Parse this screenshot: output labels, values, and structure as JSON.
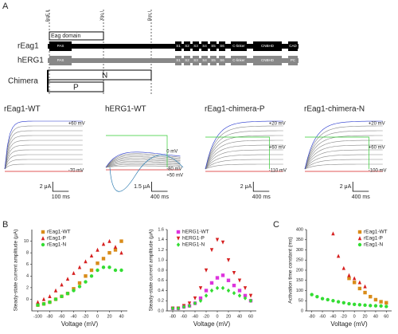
{
  "panel_a": {
    "letter": "A",
    "sites": [
      "BstE II",
      "Xho I",
      "Bmr I"
    ],
    "eag_domain": "Eag domain",
    "rows": [
      {
        "name": "rEag1",
        "domains": [
          "PAS",
          "S1",
          "S2",
          "S3",
          "S4",
          "S5",
          "S6",
          "C-linker",
          "CNBHD",
          "CAD"
        ]
      },
      {
        "name": "hERG1",
        "domains": [
          "PAS",
          "S1",
          "S2",
          "S3",
          "S4",
          "S5",
          "S6",
          "C-linker",
          "CNBHD",
          "PC"
        ]
      }
    ],
    "chimera": "Chimera",
    "n": "N",
    "p": "P"
  },
  "traces": [
    {
      "title": "rEag1-WT",
      "labels": [
        "+60 mV",
        "-70 mV"
      ],
      "scale": [
        "2 μA",
        "100 ms"
      ]
    },
    {
      "title": "hERG1-WT",
      "labels": [
        "0 mV",
        "+50 mV",
        "-80 mV"
      ],
      "scale": [
        "1.5 μA",
        "400 ms"
      ]
    },
    {
      "title": "rEag1-chimera-P",
      "labels": [
        "+20 mV",
        "+60 mV",
        "-110 mV"
      ],
      "scale": [
        "2 μA",
        "400 ms"
      ]
    },
    {
      "title": "rEag1-chimera-N",
      "labels": [
        "+20 mV",
        "+60 mV",
        "-100 mV"
      ],
      "scale": [
        "2 μA",
        "400 ms"
      ]
    }
  ],
  "panel_b": "B",
  "panel_c": "C",
  "chart_data": [
    {
      "type": "scatter",
      "xlabel": "Voltage (mV)",
      "ylabel": "Steady-state current amplitude (μA)",
      "xlim": [
        -110,
        50
      ],
      "xticks": [
        -100,
        -80,
        -60,
        -40,
        -20,
        0,
        20,
        40
      ],
      "ylim": [
        -2,
        12
      ],
      "yticks": [
        0,
        2,
        4,
        6,
        8,
        10
      ],
      "series": [
        {
          "name": "rEag1-WT",
          "color": "#d98c1a",
          "marker": "square",
          "x": [
            -100,
            -90,
            -80,
            -70,
            -60,
            -50,
            -40,
            -30,
            -20,
            -10,
            0,
            10,
            20,
            30,
            40
          ],
          "values": [
            -1,
            -0.8,
            -0.5,
            0,
            0.5,
            1,
            1.8,
            2.8,
            4,
            5,
            6.2,
            7,
            8,
            8.5,
            10
          ]
        },
        {
          "name": "rEag1-P",
          "color": "#d62020",
          "marker": "triangle",
          "x": [
            -100,
            -90,
            -80,
            -70,
            -60,
            -50,
            -40,
            -30,
            -20,
            -10,
            0,
            10,
            20,
            30,
            40
          ],
          "values": [
            -0.5,
            0,
            0.5,
            1.5,
            2.5,
            3.5,
            4.5,
            5.5,
            6.5,
            7.5,
            8.5,
            9.5,
            10,
            9,
            8
          ]
        },
        {
          "name": "rEag1-N",
          "color": "#33dd33",
          "marker": "circle",
          "x": [
            -100,
            -90,
            -80,
            -70,
            -60,
            -50,
            -40,
            -30,
            -20,
            -10,
            0,
            10,
            20,
            30,
            40
          ],
          "values": [
            -1,
            -0.8,
            -0.5,
            0,
            0.5,
            1,
            1.5,
            2.2,
            3,
            4,
            5,
            5.5,
            5.5,
            5,
            5
          ]
        }
      ]
    },
    {
      "type": "scatter",
      "xlabel": "Voltage (mV)",
      "ylabel": "Steady-state current amplitude (μA)",
      "xlim": [
        -90,
        70
      ],
      "xticks": [
        -80,
        -60,
        -40,
        -20,
        0,
        20,
        40,
        60
      ],
      "ylim": [
        0,
        1.6
      ],
      "yticks": [
        {
          "value": 0,
          "label": "0.0"
        },
        0.2,
        0.4,
        0.6,
        0.8,
        {
          "value": 1,
          "label": "1.0"
        },
        1.2,
        1.4,
        1.6
      ],
      "series": [
        {
          "name": "hERG1-WT",
          "color": "#dd33dd",
          "marker": "square",
          "x": [
            -80,
            -70,
            -60,
            -50,
            -40,
            -30,
            -20,
            -10,
            0,
            10,
            20,
            30,
            40,
            50,
            60
          ],
          "values": [
            0.05,
            0.05,
            0.08,
            0.1,
            0.15,
            0.25,
            0.4,
            0.55,
            0.65,
            0.7,
            0.6,
            0.5,
            0.4,
            0.3,
            0.2
          ]
        },
        {
          "name": "hERG1-P",
          "color": "#d62020",
          "marker": "triangle-down",
          "x": [
            -80,
            -70,
            -60,
            -50,
            -40,
            -30,
            -20,
            -10,
            0,
            10,
            20,
            30,
            40,
            50,
            60
          ],
          "values": [
            0.05,
            0.05,
            0.1,
            0.15,
            0.25,
            0.45,
            0.8,
            1.2,
            1.4,
            1.35,
            1.0,
            0.75,
            0.6,
            0.45,
            0.3
          ]
        },
        {
          "name": "hERG1-N",
          "color": "#33dd33",
          "marker": "diamond",
          "x": [
            -80,
            -70,
            -60,
            -50,
            -40,
            -30,
            -20,
            -10,
            0,
            10,
            20,
            30,
            40,
            50,
            60
          ],
          "values": [
            0.05,
            0.05,
            0.08,
            0.1,
            0.15,
            0.2,
            0.3,
            0.4,
            0.45,
            0.45,
            0.4,
            0.35,
            0.3,
            0.25,
            0.2
          ]
        }
      ]
    },
    {
      "type": "scatter",
      "xlabel": "Voltage (mV)",
      "ylabel": "Activation time constant (ms)",
      "xlim": [
        -90,
        70
      ],
      "xticks": [
        -80,
        -60,
        -40,
        -20,
        0,
        20,
        40,
        60
      ],
      "ylim": [
        0,
        400
      ],
      "yticks": [
        0,
        50,
        100,
        150,
        200,
        250,
        300,
        350,
        400
      ],
      "series": [
        {
          "name": "rEag1-WT",
          "color": "#d98c1a",
          "marker": "square",
          "x": [
            -10,
            0,
            10,
            20,
            30,
            40,
            50,
            60
          ],
          "values": [
            160,
            140,
            110,
            90,
            70,
            55,
            45,
            40
          ]
        },
        {
          "name": "rEag1-P",
          "color": "#d62020",
          "marker": "triangle",
          "x": [
            -40,
            -30,
            -20,
            -10,
            0,
            10,
            20
          ],
          "values": [
            380,
            270,
            210,
            175,
            160,
            140,
            120
          ]
        },
        {
          "name": "rEag1-N",
          "color": "#33dd33",
          "marker": "circle",
          "x": [
            -80,
            -70,
            -60,
            -50,
            -40,
            -30,
            -20,
            -10,
            0,
            10,
            20,
            30,
            40,
            50,
            60
          ],
          "values": [
            80,
            70,
            60,
            55,
            50,
            45,
            40,
            35,
            32,
            30,
            28,
            26,
            25,
            24,
            22
          ]
        }
      ]
    }
  ]
}
